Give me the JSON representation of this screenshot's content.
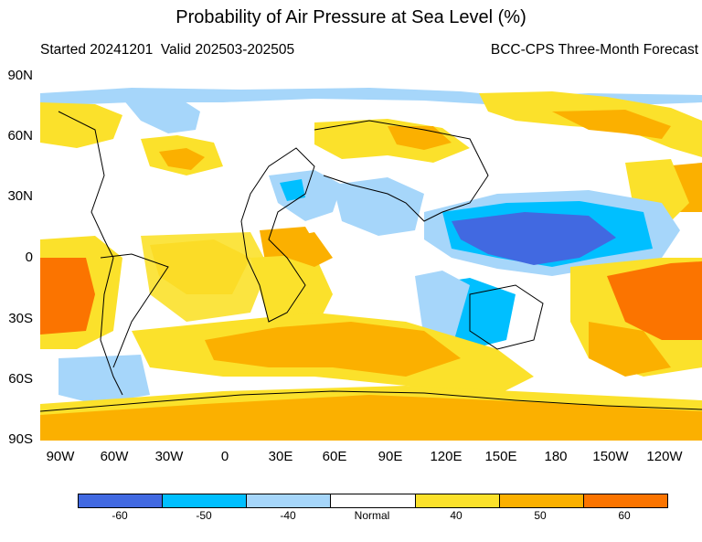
{
  "title": "Probability of Air Pressure at Sea Level (%)",
  "subtitle_left": "Started 20241201  Valid 202503-202505",
  "subtitle_right": "BCC-CPS Three-Month Forecast",
  "lat_labels": [
    "90N",
    "60N",
    "30N",
    "0",
    "30S",
    "60S",
    "90S"
  ],
  "lon_labels": [
    "90W",
    "60W",
    "30W",
    "0",
    "30E",
    "60E",
    "90E",
    "120E",
    "150E",
    "180",
    "150W",
    "120W"
  ],
  "colorbar": {
    "labels": [
      "-60",
      "-50",
      "-40",
      "Normal",
      "40",
      "50",
      "60"
    ],
    "colors": [
      "#4169e1",
      "#00bfff",
      "#a6d6fa",
      "#ffffff",
      "#fbe12b",
      "#fbb000",
      "#fb7400"
    ]
  }
}
